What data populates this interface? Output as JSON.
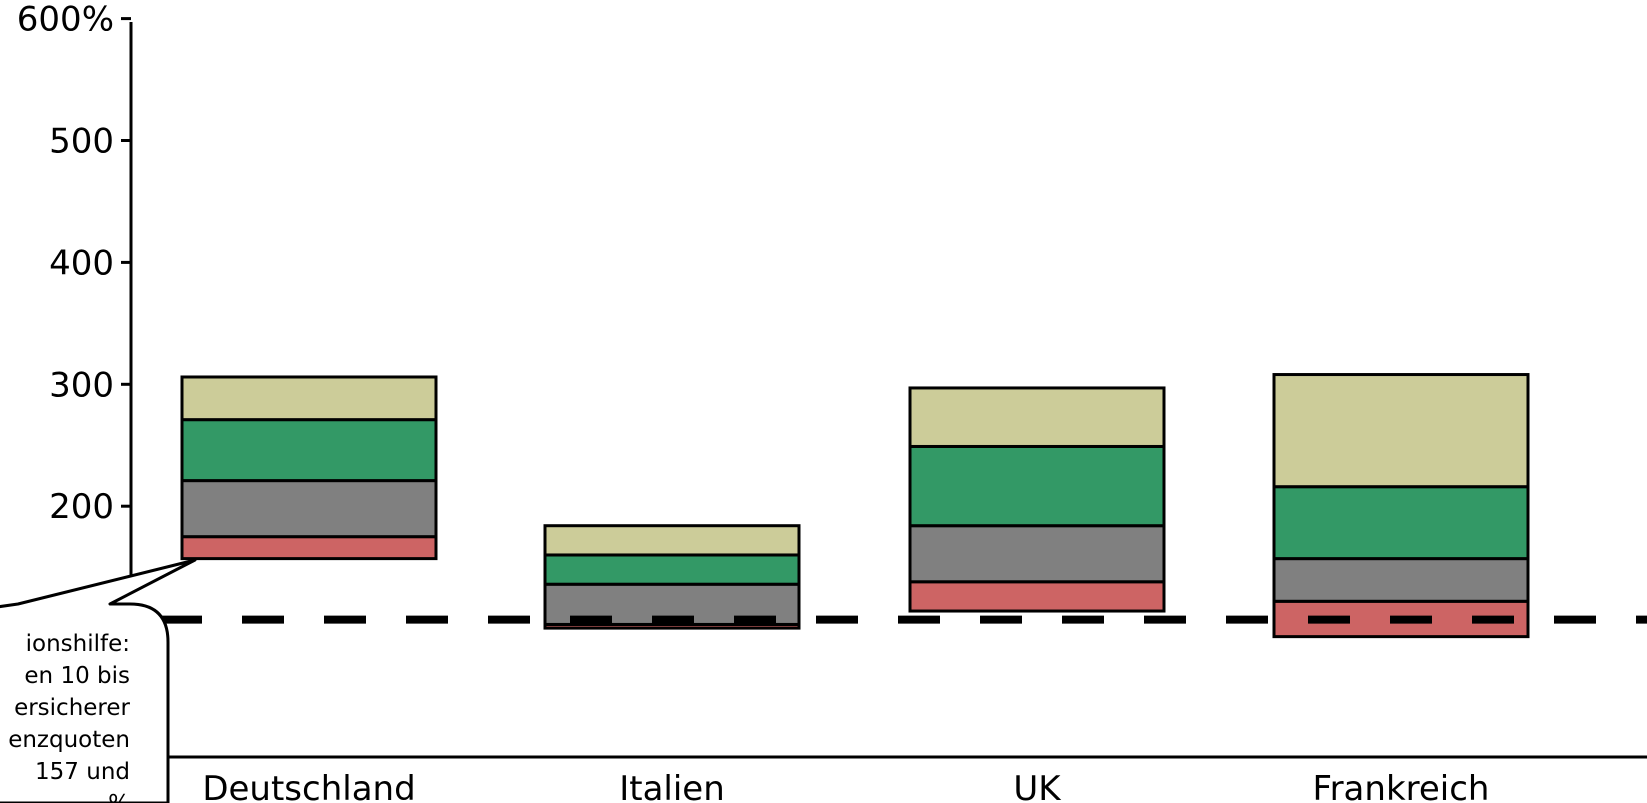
{
  "chart_data": {
    "type": "bar",
    "stacked": "floating",
    "categories": [
      "Deutschland",
      "Italien",
      "UK",
      "Frankreich"
    ],
    "y_tick_labels": [
      "200",
      "300",
      "400",
      "500",
      "600%"
    ],
    "y_ticks": [
      200,
      300,
      400,
      500,
      600
    ],
    "ylim": [
      0,
      600
    ],
    "segments": [
      {
        "color": "#CD6464",
        "ranges": [
          [
            157,
            175
          ],
          [
            100,
            103
          ],
          [
            114,
            138
          ],
          [
            93,
            122
          ]
        ]
      },
      {
        "color": "#808080",
        "ranges": [
          [
            175,
            221
          ],
          [
            103,
            136
          ],
          [
            138,
            184
          ],
          [
            122,
            157
          ]
        ]
      },
      {
        "color": "#339966",
        "ranges": [
          [
            221,
            271
          ],
          [
            136,
            160
          ],
          [
            184,
            249
          ],
          [
            157,
            216
          ]
        ]
      },
      {
        "color": "#CCCC99",
        "ranges": [
          [
            271,
            306
          ],
          [
            160,
            184
          ],
          [
            249,
            297
          ],
          [
            216,
            308
          ]
        ]
      }
    ],
    "reference_line": {
      "value": 107,
      "style": "dashed"
    },
    "callout": {
      "lines": [
        "ionshilfe:",
        "en 10 bis",
        "ersicherer",
        "enzquoten",
        "157 und",
        "%"
      ],
      "points_to": "Deutschland"
    }
  }
}
